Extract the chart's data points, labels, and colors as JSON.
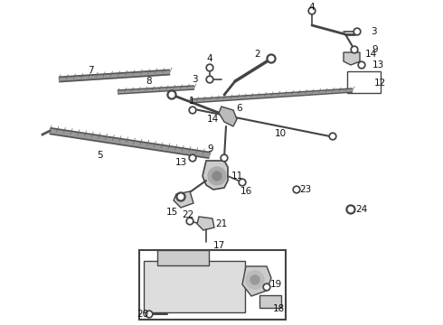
{
  "bg_color": "#ffffff",
  "fig_width": 4.9,
  "fig_height": 3.6,
  "dpi": 100,
  "gray": "#444444",
  "light_gray": "#aaaaaa",
  "label_fs": 7.5,
  "label_color": "#111111"
}
